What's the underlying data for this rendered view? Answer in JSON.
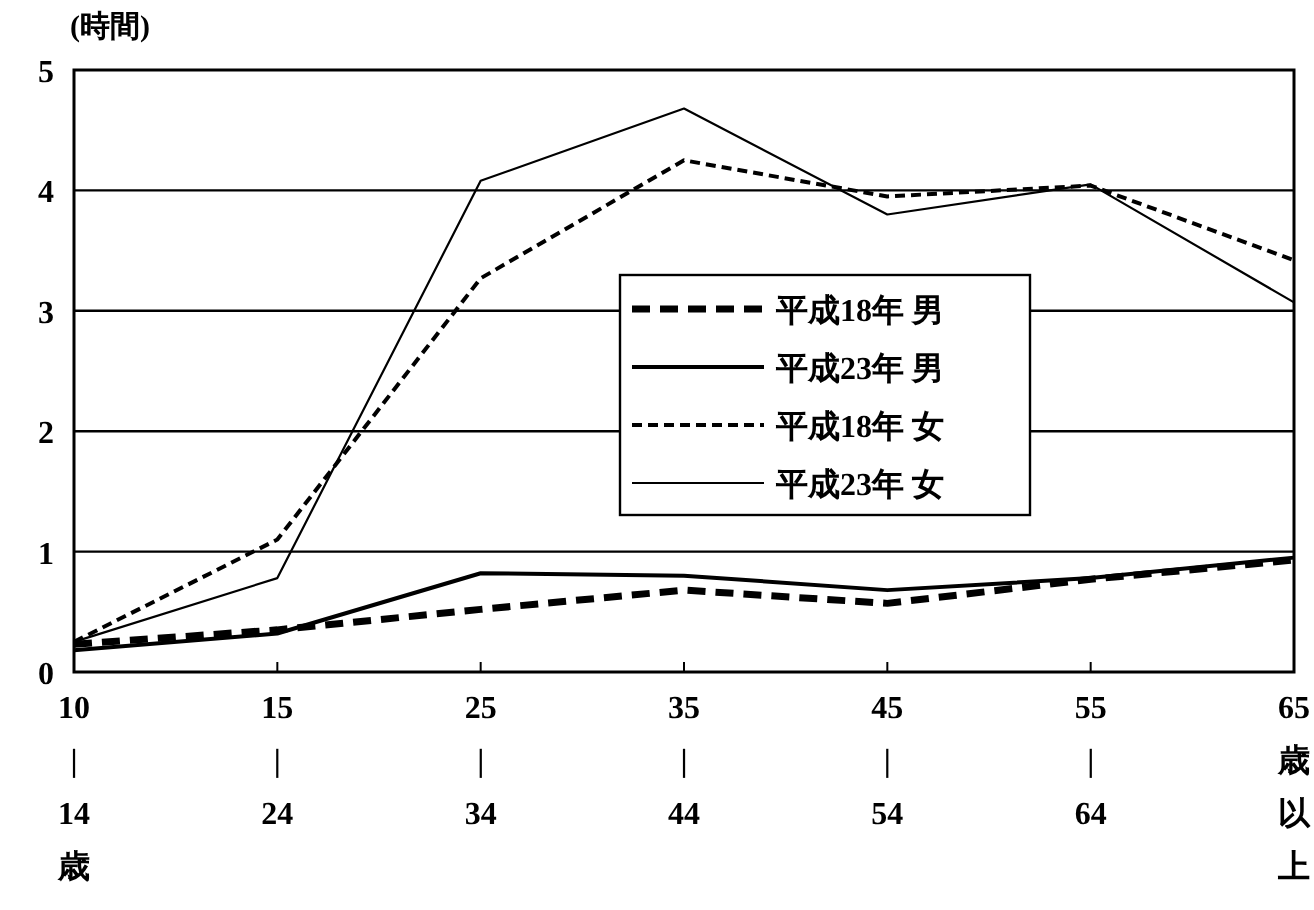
{
  "chart_data": {
    "type": "line",
    "ylabel": "(時間)",
    "categories": [
      "10\n|\n14\n歳",
      "15\n|\n24",
      "25\n|\n34",
      "35\n|\n44",
      "45\n|\n54",
      "55\n|\n64",
      "65\n歳以上"
    ],
    "series": [
      {
        "name": "平成18年 男",
        "color": "#000000",
        "line_style": "dashed",
        "values": [
          0.23,
          0.35,
          0.52,
          0.68,
          0.57,
          0.77,
          0.93
        ]
      },
      {
        "name": "平成23年 男",
        "color": "#000000",
        "line_style": "solid",
        "values": [
          0.18,
          0.32,
          0.82,
          0.8,
          0.68,
          0.78,
          0.95
        ]
      },
      {
        "name": "平成18年 女",
        "color": "#000000",
        "line_style": "dashed",
        "values": [
          0.25,
          1.1,
          3.27,
          4.25,
          3.95,
          4.04,
          3.42
        ]
      },
      {
        "name": "平成23年 女",
        "color": "#000000",
        "line_style": "solid",
        "values": [
          0.25,
          0.78,
          4.08,
          4.68,
          3.8,
          4.05,
          3.07
        ]
      }
    ],
    "ylim": [
      0,
      5
    ],
    "yticks": [
      0,
      1,
      2,
      3,
      4,
      5
    ],
    "grid": "y",
    "legend": "center"
  }
}
